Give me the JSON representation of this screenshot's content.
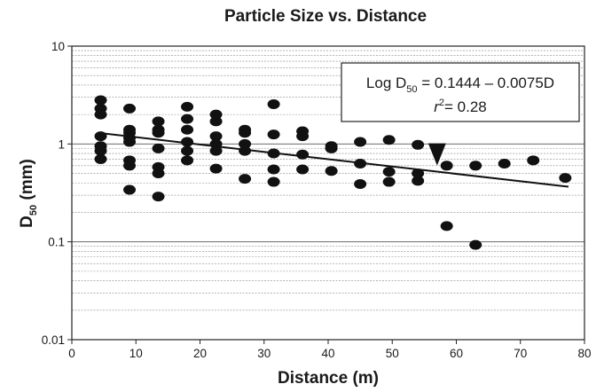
{
  "chart_data": {
    "type": "scatter",
    "title": "Particle Size vs. Distance",
    "xlabel": "Distance (m)",
    "ylabel": {
      "main": "D",
      "sub": "50",
      "unit": " (mm)"
    },
    "xlim": [
      0,
      80
    ],
    "ylim": [
      0.01,
      10
    ],
    "yscale": "log",
    "grid": true,
    "xticks": [
      "0",
      "10",
      "20",
      "30",
      "40",
      "50",
      "60",
      "70",
      "80"
    ],
    "yticks": [
      "0.01",
      "0.1",
      "1",
      "10"
    ],
    "annotation": {
      "line1_prefix": "Log D",
      "line1_sub": "50",
      "line1_suffix": " = 0.1444 – 0.0075D",
      "line2_r": "r",
      "line2_sup": "2",
      "line2_suffix": "= 0.28"
    },
    "regression": {
      "intercept_log10": 0.1444,
      "slope_log10": -0.0075,
      "x_range": [
        4.5,
        77.5
      ]
    },
    "arrow_x": 57,
    "points": [
      {
        "x": 4.5,
        "y": 2.8
      },
      {
        "x": 4.5,
        "y": 2.3
      },
      {
        "x": 4.5,
        "y": 2.0
      },
      {
        "x": 4.5,
        "y": 1.2
      },
      {
        "x": 4.5,
        "y": 0.95
      },
      {
        "x": 4.5,
        "y": 0.85
      },
      {
        "x": 4.5,
        "y": 0.7
      },
      {
        "x": 9,
        "y": 2.3
      },
      {
        "x": 9,
        "y": 1.4
      },
      {
        "x": 9,
        "y": 1.3
      },
      {
        "x": 9,
        "y": 1.15
      },
      {
        "x": 9,
        "y": 1.05
      },
      {
        "x": 9,
        "y": 0.68
      },
      {
        "x": 9,
        "y": 0.6
      },
      {
        "x": 9,
        "y": 0.34
      },
      {
        "x": 13.5,
        "y": 1.7
      },
      {
        "x": 13.5,
        "y": 1.4
      },
      {
        "x": 13.5,
        "y": 1.3
      },
      {
        "x": 13.5,
        "y": 0.9
      },
      {
        "x": 13.5,
        "y": 0.58
      },
      {
        "x": 13.5,
        "y": 0.5
      },
      {
        "x": 13.5,
        "y": 0.29
      },
      {
        "x": 18,
        "y": 2.4
      },
      {
        "x": 18,
        "y": 1.8
      },
      {
        "x": 18,
        "y": 1.4
      },
      {
        "x": 18,
        "y": 1.05
      },
      {
        "x": 18,
        "y": 0.85
      },
      {
        "x": 18,
        "y": 0.68
      },
      {
        "x": 22.5,
        "y": 2.0
      },
      {
        "x": 22.5,
        "y": 1.7
      },
      {
        "x": 22.5,
        "y": 1.2
      },
      {
        "x": 22.5,
        "y": 1.0
      },
      {
        "x": 22.5,
        "y": 0.85
      },
      {
        "x": 22.5,
        "y": 0.56
      },
      {
        "x": 27,
        "y": 1.4
      },
      {
        "x": 27,
        "y": 1.3
      },
      {
        "x": 27,
        "y": 1.0
      },
      {
        "x": 27,
        "y": 0.85
      },
      {
        "x": 27,
        "y": 0.44
      },
      {
        "x": 31.5,
        "y": 2.55
      },
      {
        "x": 31.5,
        "y": 1.25
      },
      {
        "x": 31.5,
        "y": 0.8
      },
      {
        "x": 31.5,
        "y": 0.55
      },
      {
        "x": 31.5,
        "y": 0.41
      },
      {
        "x": 36,
        "y": 1.35
      },
      {
        "x": 36,
        "y": 1.2
      },
      {
        "x": 36,
        "y": 0.78
      },
      {
        "x": 36,
        "y": 0.55
      },
      {
        "x": 40.5,
        "y": 0.95
      },
      {
        "x": 40.5,
        "y": 0.9
      },
      {
        "x": 40.5,
        "y": 0.53
      },
      {
        "x": 45,
        "y": 1.05
      },
      {
        "x": 45,
        "y": 0.63
      },
      {
        "x": 45,
        "y": 0.39
      },
      {
        "x": 49.5,
        "y": 1.1
      },
      {
        "x": 49.5,
        "y": 0.52
      },
      {
        "x": 49.5,
        "y": 0.41
      },
      {
        "x": 54,
        "y": 0.98
      },
      {
        "x": 54,
        "y": 0.5
      },
      {
        "x": 54,
        "y": 0.42
      },
      {
        "x": 58.5,
        "y": 0.6
      },
      {
        "x": 58.5,
        "y": 0.145
      },
      {
        "x": 63,
        "y": 0.6
      },
      {
        "x": 63,
        "y": 0.093
      },
      {
        "x": 67.5,
        "y": 0.63
      },
      {
        "x": 72,
        "y": 0.68
      },
      {
        "x": 77,
        "y": 0.45
      }
    ]
  }
}
